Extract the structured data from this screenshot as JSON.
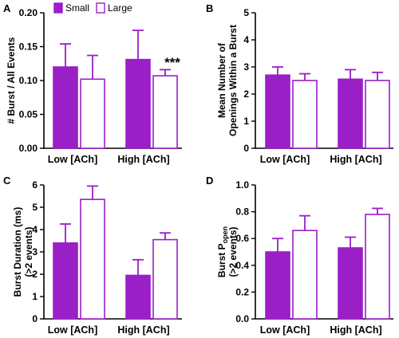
{
  "colors": {
    "small": "#9a1fc6",
    "large": "#ffffff",
    "stroke": "#9a1fc6",
    "axis": "#000000"
  },
  "chart_data": [
    {
      "panel": "A",
      "type": "bar",
      "categories": [
        "Low [ACh]",
        "High [ACh]"
      ],
      "series": [
        {
          "name": "Small",
          "values": [
            0.12,
            0.131
          ],
          "errors": [
            0.034,
            0.043
          ]
        },
        {
          "name": "Large",
          "values": [
            0.102,
            0.107
          ],
          "errors": [
            0.035,
            0.009
          ]
        }
      ],
      "ylabel": "# Burst / All Events",
      "ylabel_lines": [],
      "ylim": [
        0,
        0.2
      ],
      "yticks": [
        "0.00",
        "0.05",
        "0.10",
        "0.15",
        "0.20"
      ],
      "legend": [
        "Small",
        "Large"
      ],
      "annotation": "***"
    },
    {
      "panel": "B",
      "type": "bar",
      "categories": [
        "Low [ACh]",
        "High [ACh]"
      ],
      "series": [
        {
          "name": "Small",
          "values": [
            2.7,
            2.55
          ],
          "errors": [
            0.3,
            0.35
          ]
        },
        {
          "name": "Large",
          "values": [
            2.5,
            2.5
          ],
          "errors": [
            0.25,
            0.3
          ]
        }
      ],
      "ylabel": "",
      "ylabel_lines": [
        "Mean Number of",
        "Openings Within a Burst"
      ],
      "ylim": [
        0,
        5
      ],
      "yticks": [
        "0",
        "1",
        "2",
        "3",
        "4",
        "5"
      ]
    },
    {
      "panel": "C",
      "type": "bar",
      "categories": [
        "Low [ACh]",
        "High [ACh]"
      ],
      "series": [
        {
          "name": "Small",
          "values": [
            3.4,
            1.95
          ],
          "errors": [
            0.85,
            0.7
          ]
        },
        {
          "name": "Large",
          "values": [
            5.35,
            3.55
          ],
          "errors": [
            0.6,
            0.3
          ]
        }
      ],
      "ylabel": "",
      "ylabel_lines": [
        "Burst Duration (ms)",
        "(>2 events)"
      ],
      "ylim": [
        0,
        6
      ],
      "yticks": [
        "0",
        "1",
        "2",
        "3",
        "4",
        "5",
        "6"
      ]
    },
    {
      "panel": "D",
      "type": "bar",
      "categories": [
        "Low [ACh]",
        "High [ACh]"
      ],
      "series": [
        {
          "name": "Small",
          "values": [
            0.5,
            0.53
          ],
          "errors": [
            0.1,
            0.08
          ]
        },
        {
          "name": "Large",
          "values": [
            0.66,
            0.78
          ],
          "errors": [
            0.11,
            0.045
          ]
        }
      ],
      "ylabel": "",
      "ylabel_lines": [
        "Burst P_open",
        "(>2 events)"
      ],
      "ylim": [
        0,
        1.0
      ],
      "yticks": [
        "0.0",
        "0.2",
        "0.4",
        "0.6",
        "0.8",
        "1.0"
      ]
    }
  ]
}
